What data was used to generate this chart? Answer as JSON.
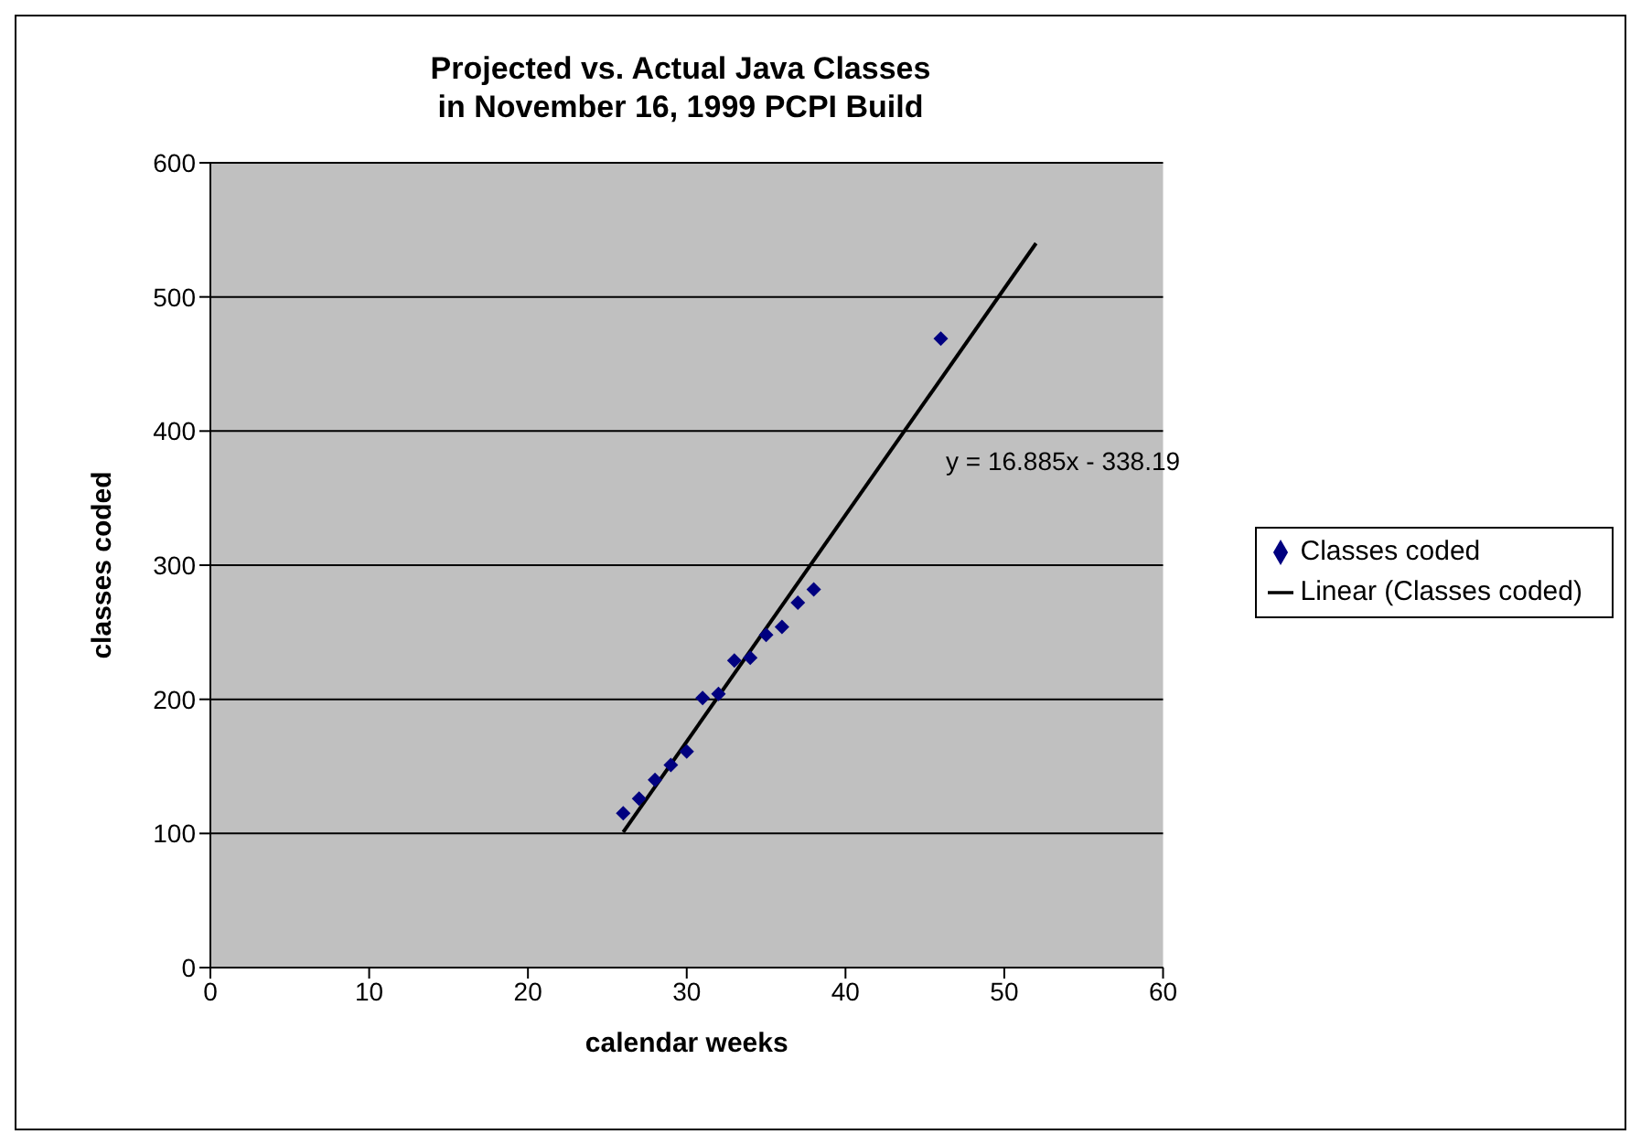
{
  "chart_data": {
    "type": "scatter",
    "title": "Projected vs. Actual Java Classes\nin November 16, 1999 PCPI Build",
    "xlabel": "calendar weeks",
    "ylabel": "classes coded",
    "xlim": [
      0,
      60
    ],
    "xticks": [
      0,
      10,
      20,
      30,
      40,
      50,
      60
    ],
    "ylim": [
      0,
      600
    ],
    "yticks": [
      0,
      100,
      200,
      300,
      400,
      500,
      600
    ],
    "grid": "y",
    "legend": "right",
    "marker": "diamond",
    "series": [
      {
        "name": "Classes coded",
        "color": "#000080",
        "x": [
          26,
          27,
          28,
          29,
          30,
          31,
          32,
          33,
          34,
          35,
          36,
          37,
          38,
          46
        ],
        "values": [
          115,
          126,
          140,
          151,
          161,
          201,
          204,
          229,
          231,
          248,
          254,
          272,
          282,
          469
        ]
      },
      {
        "name": "Linear (Classes coded)",
        "type": "line",
        "color": "#000000",
        "line_style": "solid",
        "marker": "none",
        "x": [
          26,
          52
        ],
        "values": [
          101,
          540
        ]
      }
    ],
    "annotations": [
      "y = 16.885x - 338.19"
    ]
  }
}
